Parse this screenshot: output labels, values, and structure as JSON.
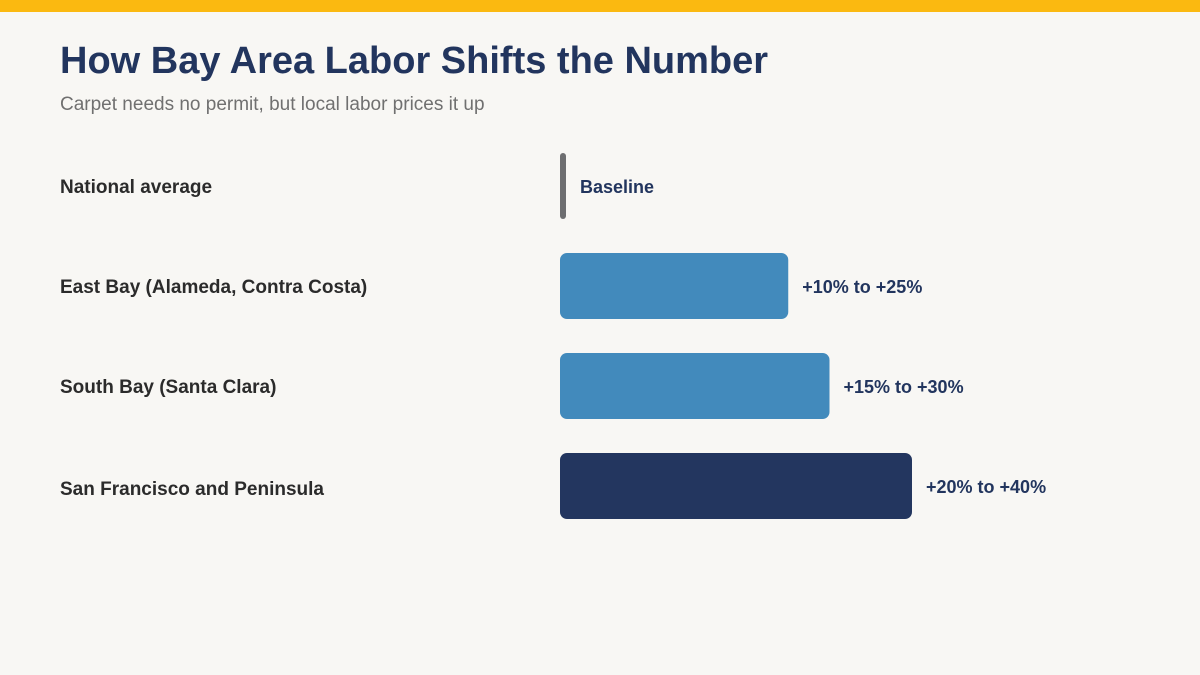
{
  "header": {
    "title": "How Bay Area Labor Shifts the Number",
    "subtitle": "Carpet needs no permit, but local labor prices it up"
  },
  "colors": {
    "accent_band": "#fbb910",
    "title": "#22355e",
    "baseline_marker": "#6e6e70",
    "bar_light": "#428abc",
    "bar_dark": "#23365f",
    "value_text": "#22355e"
  },
  "chart_data": {
    "type": "bar",
    "orientation": "horizontal",
    "title": "How Bay Area Labor Shifts the Number",
    "subtitle": "Carpet needs no permit, but local labor prices it up",
    "xlabel": "",
    "ylabel": "",
    "grid": false,
    "legend": "none",
    "categories": [
      "National average",
      "East Bay (Alameda, Contra Costa)",
      "South Bay (Santa Clara)",
      "San Francisco and Peninsula"
    ],
    "value_labels": [
      "Baseline",
      "+10% to +25%",
      "+15% to +30%",
      "+20% to +40%"
    ],
    "ranges_percent": [
      [
        0,
        0
      ],
      [
        10,
        25
      ],
      [
        15,
        30
      ],
      [
        20,
        40
      ]
    ],
    "bar_colors": [
      "#6e6e70",
      "#428abc",
      "#428abc",
      "#23365f"
    ]
  }
}
